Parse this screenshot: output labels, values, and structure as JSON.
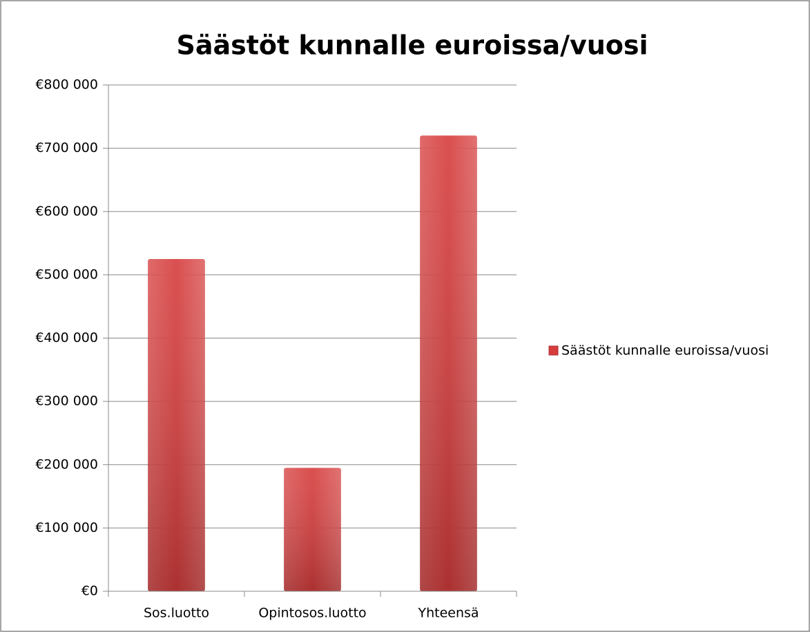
{
  "chart_data": {
    "type": "bar",
    "title": "Säästöt kunnalle euroissa/vuosi",
    "categories": [
      "Sos.luotto",
      "Opintosos.luotto",
      "Yhteensä"
    ],
    "series": [
      {
        "name": "Säästöt kunnalle euroissa/vuosi",
        "color": "#d63c3c",
        "values": [
          525000,
          195000,
          720000
        ]
      }
    ],
    "ylim": [
      0,
      800000
    ],
    "yticks": [
      {
        "value": 0,
        "label": "€0"
      },
      {
        "value": 100000,
        "label": "€100 000"
      },
      {
        "value": 200000,
        "label": "€200 000"
      },
      {
        "value": 300000,
        "label": "€300 000"
      },
      {
        "value": 400000,
        "label": "€400 000"
      },
      {
        "value": 500000,
        "label": "€500 000"
      },
      {
        "value": 600000,
        "label": "€600 000"
      },
      {
        "value": 700000,
        "label": "€700 000"
      },
      {
        "value": 800000,
        "label": "€800 000"
      }
    ],
    "grid": true,
    "legend": "right"
  }
}
